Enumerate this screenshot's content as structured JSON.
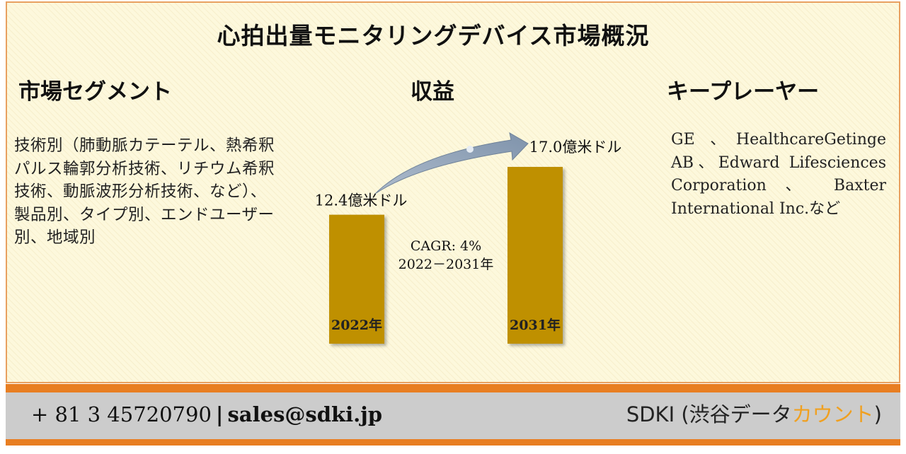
{
  "title": "心拍出量モニタリングデバイス市場概況",
  "segments": {
    "heading": "市場セグメント",
    "text": "技術別（肺動脈カテーテル、熱希釈パルス輪郭分析技術、リチウム希釈技術、動脈波形分析技術、など）、製品別、タイプ別、エンドユーザー別、地域別"
  },
  "revenue": {
    "heading": "収益",
    "cagr_line1": "CAGR: 4%",
    "cagr_line2": "2022－2031年"
  },
  "key_players": {
    "heading": "キープレーヤー",
    "text": "GE 、HealthcareGetinge AB、Edward Lifesciences Corporation 、 Baxter International Inc.など"
  },
  "chart_data": {
    "type": "bar",
    "categories": [
      "2022年",
      "2031年"
    ],
    "values": [
      12.4,
      17.0
    ],
    "value_labels": [
      "12.4億米ドル",
      "17.0億米ドル"
    ],
    "ylim": [
      0,
      17.0
    ],
    "bar_color": "#bf9000",
    "arrow_color": "#8497b0"
  },
  "footer": {
    "phone": "+ 81 3 45720790",
    "separator": "|",
    "email": "sales@sdki.jp",
    "brand_main": "SDKI (渋谷データ",
    "brand_accent": "カウント",
    "brand_close": ")"
  },
  "colors": {
    "accent_orange": "#e87e22",
    "bar_gold": "#bf9000",
    "footer_gray": "#cccccc",
    "brand_accent": "#f0a020"
  }
}
